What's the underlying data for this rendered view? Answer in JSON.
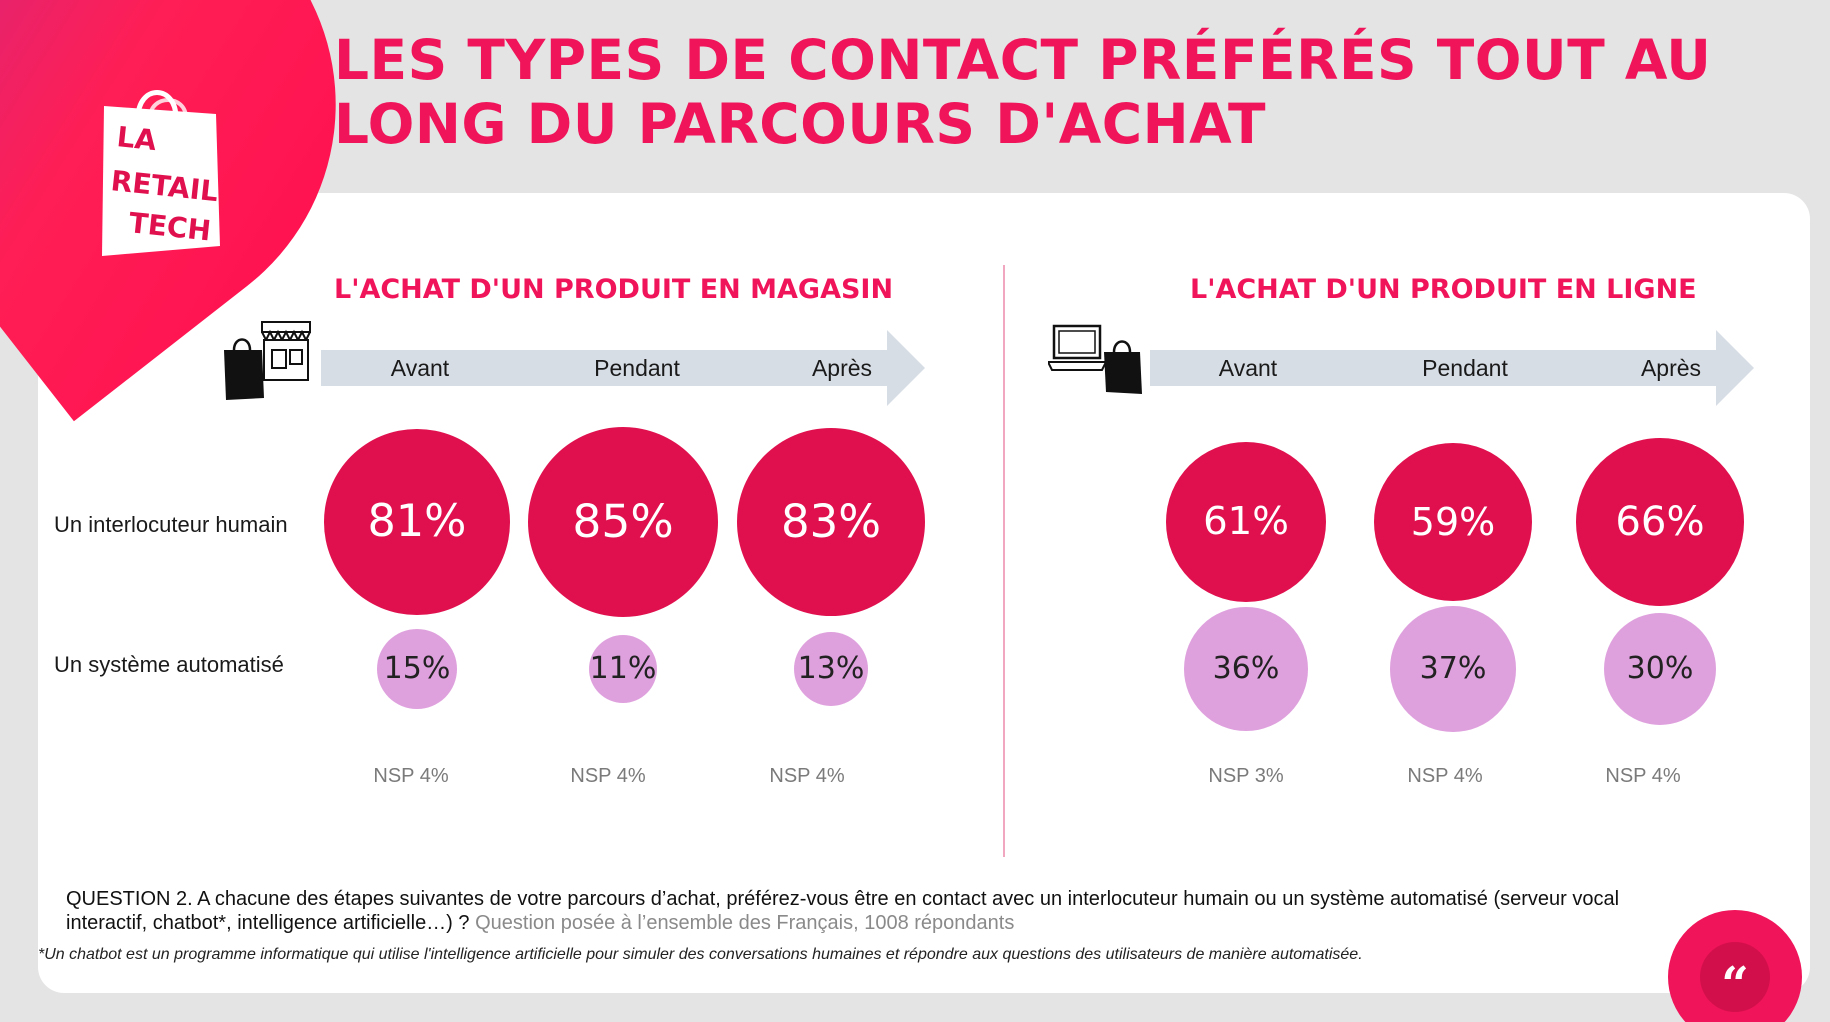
{
  "title_line1": "LES TYPES DE CONTACT PRÉFÉRÉS TOUT AU",
  "title_line2": "LONG DU PARCOURS D'ACHAT",
  "logo": {
    "line1": "LA",
    "line2": "RETAIL",
    "line3": "TECH"
  },
  "row_labels": {
    "human": "Un interlocuteur humain",
    "auto": "Un système automatisé"
  },
  "colors": {
    "accent": "#f0145a",
    "human_bubble": "#e0104e",
    "auto_bubble": "#dfa1de",
    "arrow": "#d7dde5"
  },
  "icons": {
    "store": "shopping-bag-store-icon",
    "online": "laptop-shopping-bag-icon",
    "quote": "quote-icon"
  },
  "chart_data": [
    {
      "type": "bubble",
      "title": "L'ACHAT D'UN PRODUIT EN MAGASIN",
      "categories": [
        "Avant",
        "Pendant",
        "Après"
      ],
      "series": [
        {
          "name": "Un interlocuteur humain",
          "values": [
            81,
            85,
            83
          ],
          "labels": [
            "81%",
            "85%",
            "83%"
          ]
        },
        {
          "name": "Un système automatisé",
          "values": [
            15,
            11,
            13
          ],
          "labels": [
            "15%",
            "11%",
            "13%"
          ]
        }
      ],
      "nsp": [
        "NSP 4%",
        "NSP 4%",
        "NSP 4%"
      ]
    },
    {
      "type": "bubble",
      "title": "L'ACHAT D'UN PRODUIT EN LIGNE",
      "categories": [
        "Avant",
        "Pendant",
        "Après"
      ],
      "series": [
        {
          "name": "Un interlocuteur humain",
          "values": [
            61,
            59,
            66
          ],
          "labels": [
            "61%",
            "59%",
            "66%"
          ]
        },
        {
          "name": "Un système automatisé",
          "values": [
            36,
            37,
            30
          ],
          "labels": [
            "36%",
            "37%",
            "30%"
          ]
        }
      ],
      "nsp": [
        "NSP 3%",
        "NSP 4%",
        "NSP 4%"
      ]
    }
  ],
  "question": {
    "main": "QUESTION 2. A chacune des étapes suivantes de votre parcours d’achat, préférez-vous être en contact avec un interlocuteur humain ou un système automatisé (serveur vocal interactif, chatbot*, intelligence artificielle…) ?",
    "note": "Question posée à l’ensemble des Français, 1008 répondants"
  },
  "footnote": "*Un chatbot est un programme informatique qui utilise l'intelligence artificielle pour simuler des conversations humaines et répondre aux questions des utilisateurs de manière automatisée.",
  "quote_glyph": "“"
}
